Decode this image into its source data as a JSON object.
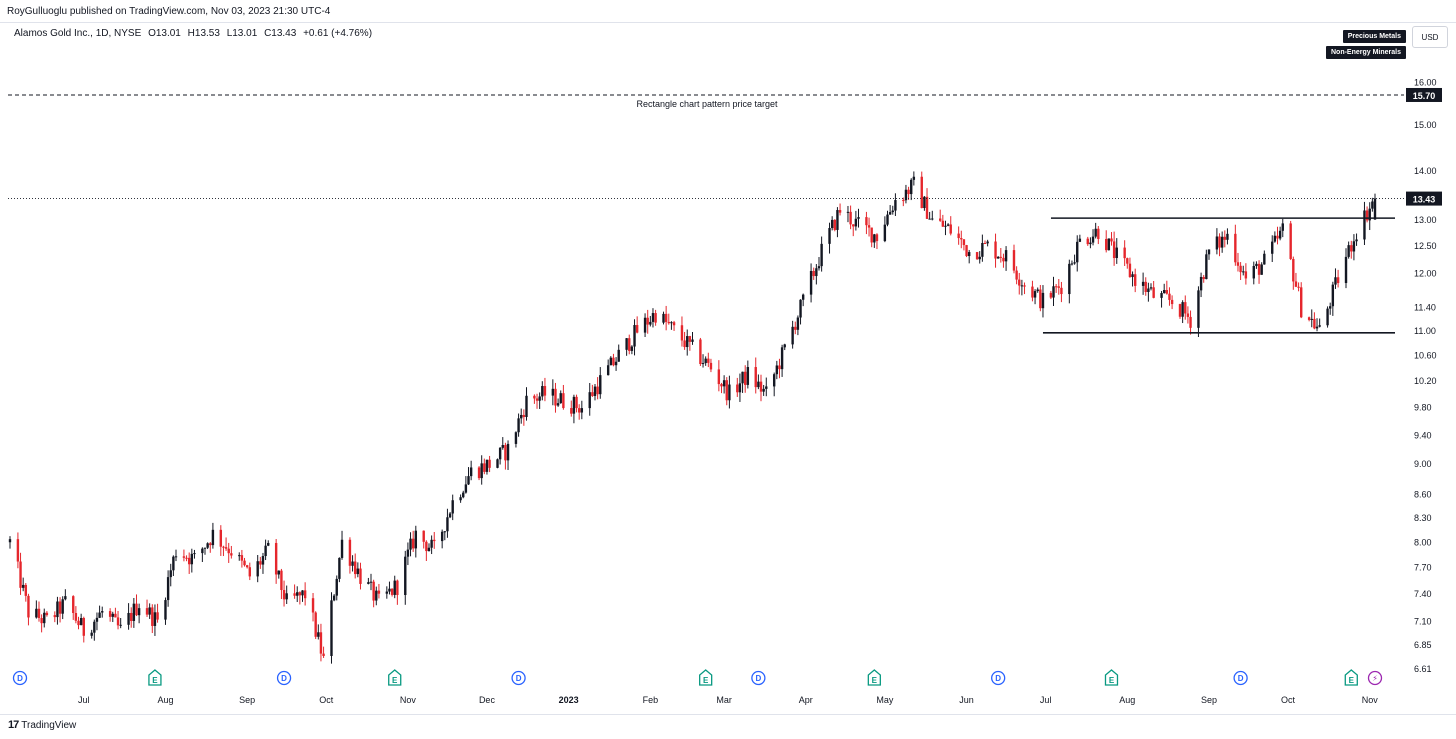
{
  "header": {
    "publisher": "RoyGulluoglu published on TradingView.com, Nov 03, 2023 21:30 UTC-4",
    "legend": {
      "symbol": "Alamos Gold Inc., 1D, NYSE",
      "open": "O13.01",
      "high": "H13.53",
      "low": "L13.01",
      "close": "C13.43",
      "change": "+0.61 (+4.76%)"
    },
    "tags": [
      "Precious Metals",
      "Non-Energy Minerals"
    ],
    "currency": "USD"
  },
  "footer": {
    "logo_mark": "17",
    "logo_text": "TradingView"
  },
  "colors": {
    "up": "#131722",
    "down": "#e5262c",
    "event_dividend": "#2962ff",
    "event_earnings": "#089981",
    "event_split": "#9c27b0"
  },
  "chart_data": {
    "type": "candlestick",
    "scale": "log",
    "y_ticks": [
      6.61,
      6.85,
      7.1,
      7.4,
      7.7,
      8.0,
      8.3,
      8.6,
      9.0,
      9.4,
      9.8,
      10.2,
      10.6,
      11.0,
      11.4,
      12.0,
      12.5,
      13.0,
      14.0,
      15.0,
      16.0
    ],
    "y_tick_labels": [
      "6.61",
      "6.85",
      "7.10",
      "7.40",
      "7.70",
      "8.00",
      "8.30",
      "8.60",
      "9.00",
      "9.40",
      "9.80",
      "10.20",
      "10.60",
      "11.00",
      "11.40",
      "12.00",
      "12.50",
      "13.00",
      "14.00",
      "15.00",
      "16.00"
    ],
    "ylim": [
      6.5,
      16.6
    ],
    "x_tick_labels": [
      "Jul",
      "Aug",
      "Sep",
      "Oct",
      "Nov",
      "Dec",
      "2023",
      "Feb",
      "Mar",
      "Apr",
      "May",
      "Jun",
      "Jul",
      "Aug",
      "Sep",
      "Oct",
      "Nov"
    ],
    "x_tick_dates": [
      "2022-07-01",
      "2022-08-01",
      "2022-09-01",
      "2022-10-01",
      "2022-11-01",
      "2022-12-01",
      "2023-01-01",
      "2023-02-01",
      "2023-03-01",
      "2023-04-01",
      "2023-05-01",
      "2023-06-01",
      "2023-07-01",
      "2023-08-01",
      "2023-09-01",
      "2023-10-01",
      "2023-11-01"
    ],
    "xlim": [
      "2022-06-03",
      "2023-11-03"
    ],
    "close_path": [
      [
        "2022-06-03",
        8.0
      ],
      [
        "2022-06-10",
        7.2
      ],
      [
        "2022-06-17",
        7.1
      ],
      [
        "2022-06-24",
        7.3
      ],
      [
        "2022-07-01",
        7.0
      ],
      [
        "2022-07-08",
        7.2
      ],
      [
        "2022-07-15",
        7.0
      ],
      [
        "2022-07-22",
        7.3
      ],
      [
        "2022-07-29",
        7.1
      ],
      [
        "2022-08-05",
        7.9
      ],
      [
        "2022-08-12",
        7.8
      ],
      [
        "2022-08-19",
        8.1
      ],
      [
        "2022-08-26",
        7.9
      ],
      [
        "2022-09-02",
        7.6
      ],
      [
        "2022-09-09",
        7.9
      ],
      [
        "2022-09-16",
        7.3
      ],
      [
        "2022-09-23",
        7.4
      ],
      [
        "2022-09-30",
        6.7
      ],
      [
        "2022-10-07",
        8.0
      ],
      [
        "2022-10-14",
        7.6
      ],
      [
        "2022-10-21",
        7.3
      ],
      [
        "2022-10-28",
        7.5
      ],
      [
        "2022-11-04",
        8.1
      ],
      [
        "2022-11-11",
        7.9
      ],
      [
        "2022-11-18",
        8.5
      ],
      [
        "2022-11-25",
        8.9
      ],
      [
        "2022-12-02",
        9.0
      ],
      [
        "2022-12-09",
        9.2
      ],
      [
        "2022-12-16",
        9.9
      ],
      [
        "2022-12-23",
        10.0
      ],
      [
        "2022-12-30",
        9.9
      ],
      [
        "2023-01-06",
        9.8
      ],
      [
        "2023-01-13",
        10.2
      ],
      [
        "2023-01-20",
        10.6
      ],
      [
        "2023-01-27",
        11.0
      ],
      [
        "2023-02-03",
        11.3
      ],
      [
        "2023-02-10",
        11.0
      ],
      [
        "2023-02-17",
        10.7
      ],
      [
        "2023-02-24",
        10.4
      ],
      [
        "2023-03-03",
        10.0
      ],
      [
        "2023-03-10",
        10.3
      ],
      [
        "2023-03-17",
        10.0
      ],
      [
        "2023-03-24",
        10.7
      ],
      [
        "2023-03-31",
        11.5
      ],
      [
        "2023-04-07",
        12.4
      ],
      [
        "2023-04-14",
        13.2
      ],
      [
        "2023-04-21",
        12.9
      ],
      [
        "2023-04-28",
        12.7
      ],
      [
        "2023-05-05",
        13.4
      ],
      [
        "2023-05-12",
        13.7
      ],
      [
        "2023-05-19",
        13.0
      ],
      [
        "2023-05-26",
        12.8
      ],
      [
        "2023-06-02",
        12.4
      ],
      [
        "2023-06-09",
        12.5
      ],
      [
        "2023-06-16",
        12.3
      ],
      [
        "2023-06-23",
        11.8
      ],
      [
        "2023-06-30",
        11.5
      ],
      [
        "2023-07-07",
        11.8
      ],
      [
        "2023-07-14",
        12.6
      ],
      [
        "2023-07-21",
        12.8
      ],
      [
        "2023-07-28",
        12.3
      ],
      [
        "2023-08-04",
        11.9
      ],
      [
        "2023-08-11",
        11.6
      ],
      [
        "2023-08-18",
        11.5
      ],
      [
        "2023-08-25",
        11.2
      ],
      [
        "2023-09-01",
        12.4
      ],
      [
        "2023-09-08",
        12.7
      ],
      [
        "2023-09-15",
        11.9
      ],
      [
        "2023-09-22",
        12.2
      ],
      [
        "2023-09-29",
        12.8
      ],
      [
        "2023-10-06",
        11.4
      ],
      [
        "2023-10-13",
        11.0
      ],
      [
        "2023-10-20",
        11.9
      ],
      [
        "2023-10-27",
        12.8
      ],
      [
        "2023-11-03",
        13.43
      ]
    ],
    "current_price": {
      "value": 13.43,
      "label": "13.43"
    },
    "target_line": {
      "value": 15.7,
      "label": "15.70",
      "annotation": "Rectangle chart pattern price target"
    },
    "rectangle": {
      "top": 13.04,
      "bottom": 10.97,
      "start": "2023-06-30",
      "end": "2023-11-03"
    },
    "events": [
      {
        "type": "D",
        "date": "2022-06-03"
      },
      {
        "type": "E",
        "date": "2022-07-28"
      },
      {
        "type": "D",
        "date": "2022-09-15"
      },
      {
        "type": "E",
        "date": "2022-10-27"
      },
      {
        "type": "D",
        "date": "2022-12-13"
      },
      {
        "type": "E",
        "date": "2023-02-22"
      },
      {
        "type": "D",
        "date": "2023-03-14"
      },
      {
        "type": "E",
        "date": "2023-04-27"
      },
      {
        "type": "D",
        "date": "2023-06-13"
      },
      {
        "type": "E",
        "date": "2023-07-26"
      },
      {
        "type": "D",
        "date": "2023-09-13"
      },
      {
        "type": "E",
        "date": "2023-10-25"
      },
      {
        "type": "split",
        "date": "2023-11-03"
      }
    ]
  }
}
